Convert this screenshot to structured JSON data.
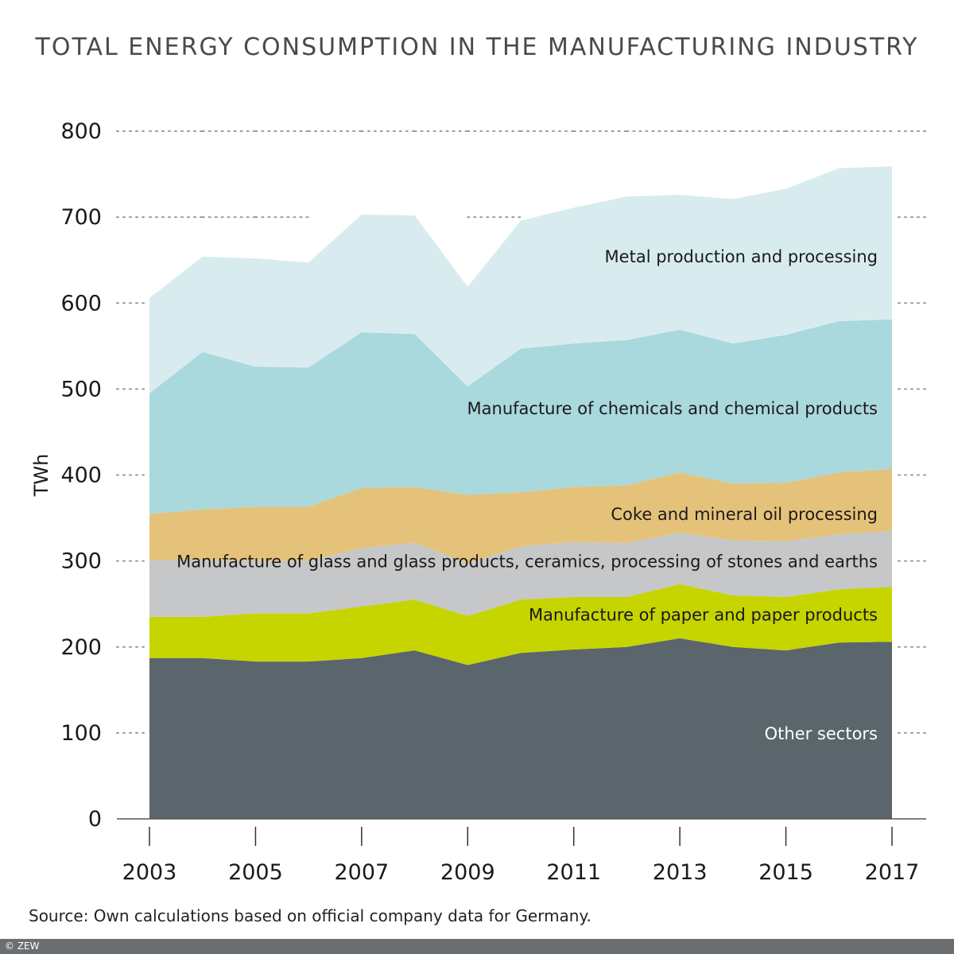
{
  "chart_data": {
    "type": "area",
    "stacked": true,
    "title": "TOTAL ENERGY CONSUMPTION IN THE MANUFACTURING INDUSTRY",
    "ylabel": "TWh",
    "xlabel": "",
    "ylim": [
      0,
      800
    ],
    "yticks": [
      0,
      100,
      200,
      300,
      400,
      500,
      600,
      700,
      800
    ],
    "xticks": [
      2003,
      2005,
      2007,
      2009,
      2011,
      2013,
      2015,
      2017
    ],
    "grid": "horizontal dotted",
    "x": [
      2003,
      2004,
      2005,
      2006,
      2007,
      2008,
      2009,
      2010,
      2011,
      2012,
      2013,
      2014,
      2015,
      2016,
      2017
    ],
    "series": [
      {
        "name": "Other sectors",
        "color": "#5a656c",
        "label_color": "#ffffff",
        "values": [
          187,
          187,
          183,
          183,
          187,
          196,
          179,
          193,
          197,
          200,
          210,
          200,
          196,
          205,
          206
        ]
      },
      {
        "name": "Manufacture of paper and paper products",
        "color": "#c6d400",
        "label_color": "#1a1a1a",
        "values": [
          48,
          48,
          56,
          56,
          60,
          59,
          57,
          62,
          61,
          58,
          63,
          60,
          62,
          62,
          64
        ]
      },
      {
        "name": "Manufacture of glass and glass products, ceramics, processing of stones and earths",
        "color": "#c6c7c8",
        "label_color": "#1a1a1a",
        "values": [
          66,
          66,
          61,
          61,
          68,
          66,
          61,
          62,
          64,
          63,
          60,
          64,
          65,
          64,
          65
        ]
      },
      {
        "name": "Coke and mineral oil processing",
        "color": "#e5c27a",
        "label_color": "#1a1a1a",
        "values": [
          54,
          59,
          63,
          63,
          70,
          65,
          80,
          63,
          64,
          67,
          70,
          66,
          68,
          72,
          72
        ]
      },
      {
        "name": "Manufacture of chemicals and chemical products",
        "color": "#a9d8dd",
        "label_color": "#1a1a1a",
        "values": [
          140,
          183,
          163,
          162,
          181,
          178,
          126,
          167,
          167,
          169,
          166,
          163,
          172,
          176,
          174
        ]
      },
      {
        "name": "Metal production and processing",
        "color": "#d8ecef",
        "label_color": "#1a1a1a",
        "values": [
          111,
          111,
          126,
          122,
          137,
          138,
          116,
          149,
          158,
          167,
          157,
          168,
          170,
          178,
          178
        ]
      }
    ]
  },
  "source": "Source: Own calculations based on official company data for Germany.",
  "copyright": "© ZEW"
}
